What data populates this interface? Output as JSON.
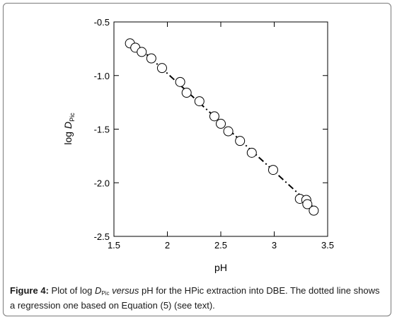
{
  "chart_data": {
    "type": "scatter",
    "xlabel": "pH",
    "ylabel": {
      "prefix": "log ",
      "italic": "D",
      "sub": "Pic"
    },
    "xlim": [
      1.5,
      3.5
    ],
    "ylim": [
      -2.5,
      -0.5
    ],
    "x_ticks": [
      1.5,
      2,
      2.5,
      3,
      3.5
    ],
    "x_tick_labels": [
      "1.5",
      "2",
      "2.5",
      "3",
      "3.5"
    ],
    "y_ticks": [
      -0.5,
      -1.0,
      -1.5,
      -2.0,
      -2.5
    ],
    "y_tick_labels": [
      "-0.5",
      "-1.0",
      "-1.5",
      "-2.0",
      "-2.5"
    ],
    "grid": false,
    "series": [
      {
        "marker": "open-circle",
        "x": [
          1.65,
          1.7,
          1.76,
          1.85,
          1.95,
          2.12,
          2.18,
          2.3,
          2.44,
          2.5,
          2.57,
          2.68,
          2.79,
          2.99,
          3.24,
          3.3,
          3.31,
          3.37
        ],
        "y": [
          -0.7,
          -0.74,
          -0.78,
          -0.84,
          -0.93,
          -1.06,
          -1.16,
          -1.24,
          -1.38,
          -1.45,
          -1.52,
          -1.61,
          -1.72,
          -1.88,
          -2.15,
          -2.16,
          -2.2,
          -2.26
        ]
      }
    ],
    "regression_line": {
      "style": "dash-dot",
      "x": [
        1.65,
        3.4
      ],
      "y": [
        -0.66,
        -2.26
      ]
    }
  },
  "caption": {
    "label": "Figure 4:",
    "text1": " Plot of log ",
    "d": "D",
    "sub": "Pic",
    "versus": " versus",
    "text2": " pH for the HPic extraction into DBE.  The dotted line shows a regression one based on Equation  (5) (see text)."
  }
}
